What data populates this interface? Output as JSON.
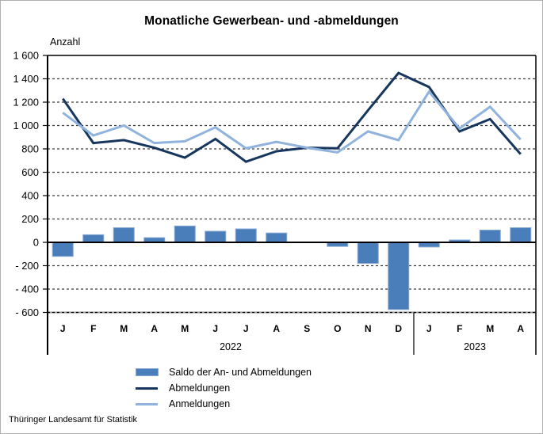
{
  "title": "Monatliche Gewerbean- und -abmeldungen",
  "axis_unit_label": "Anzahl",
  "footer": "Thüringer Landesamt für Statistik",
  "colors": {
    "bar_fill": "#4a7ebb",
    "bar_edge": "#85a8d4",
    "abmeldungen_line": "#17365d",
    "anmeldungen_line": "#8fb3dd",
    "gridline": "#3c3c3c",
    "axis": "#000000"
  },
  "legend": [
    {
      "swatch": "bar",
      "label": "Saldo der An- und Abmeldungen",
      "color": "#4a7ebb",
      "edge": "#85a8d4"
    },
    {
      "swatch": "line",
      "label": "Abmeldungen",
      "color": "#17365d"
    },
    {
      "swatch": "line",
      "label": "Anmeldungen",
      "color": "#8fb3dd"
    }
  ],
  "chart_data": {
    "type": "bar+line combo",
    "title": "Monatliche Gewerbean- und -abmeldungen",
    "ylabel": "Anzahl",
    "categories": [
      "J",
      "F",
      "M",
      "A",
      "M",
      "J",
      "J",
      "A",
      "S",
      "O",
      "N",
      "D",
      "J",
      "F",
      "M",
      "A"
    ],
    "year_groups": [
      {
        "label": "2022",
        "start": 0,
        "count": 12
      },
      {
        "label": "2023",
        "start": 12,
        "count": 4
      }
    ],
    "series": [
      {
        "name": "Saldo der An- und Abmeldungen",
        "type": "bar",
        "color": "#4a7ebb",
        "values": [
          -120,
          65,
          125,
          40,
          140,
          95,
          115,
          80,
          0,
          -35,
          -180,
          -575,
          -40,
          20,
          105,
          125
        ]
      },
      {
        "name": "Abmeldungen",
        "type": "line",
        "color": "#17365d",
        "values": [
          1230,
          850,
          875,
          810,
          725,
          885,
          690,
          780,
          810,
          805,
          1130,
          1450,
          1330,
          950,
          1055,
          755
        ]
      },
      {
        "name": "Anmeldungen",
        "type": "line",
        "color": "#8fb3dd",
        "values": [
          1110,
          915,
          1000,
          850,
          865,
          985,
          805,
          860,
          810,
          770,
          950,
          875,
          1290,
          975,
          1160,
          880
        ]
      }
    ],
    "ylim": [
      -600,
      1600
    ],
    "ytick_step": 200,
    "ytick_labels": [
      "1 600",
      "1 400",
      "1 200",
      "1 000",
      "800",
      "600",
      "400",
      "200",
      "0",
      "- 200",
      "- 400",
      "- 600"
    ],
    "grid": "horizontal dashed",
    "legend_position": "bottom-left"
  }
}
